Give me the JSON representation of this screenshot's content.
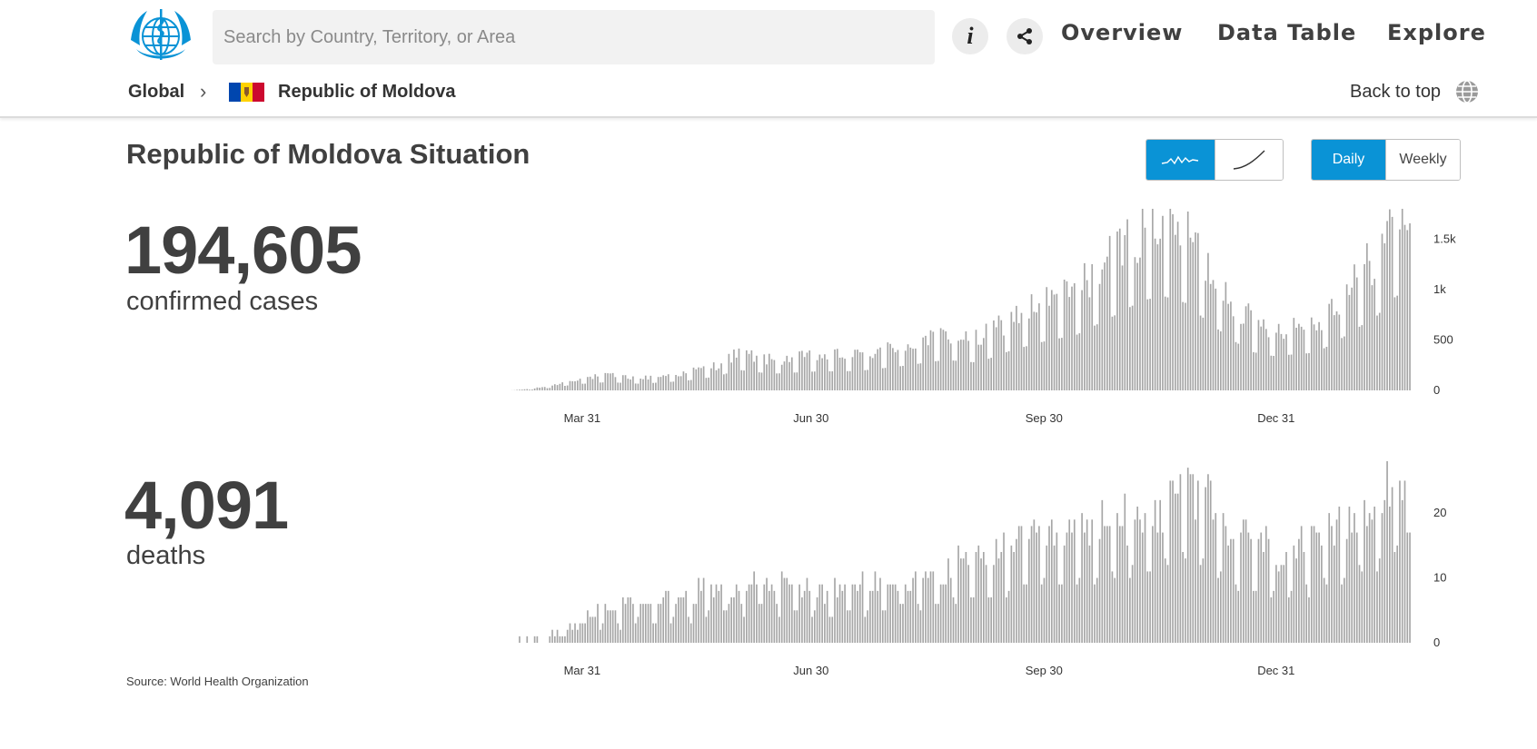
{
  "search": {
    "placeholder": "Search by Country, Territory, or Area"
  },
  "nav": {
    "overview": "Overview",
    "data_table": "Data Table",
    "explore": "Explore"
  },
  "breadcrumb": {
    "global": "Global",
    "country": "Republic of Moldova",
    "back_to_top": "Back to top"
  },
  "flag_colors": [
    "#0046ae",
    "#ffd200",
    "#cc092f"
  ],
  "accent_color": "#0a93d6",
  "icons": {
    "logo": "who-logo-icon",
    "info": "info-icon",
    "share": "share-icon",
    "globe": "globe-icon",
    "chevron": "chevron-right-icon",
    "daily_wave": "bar-trend-icon",
    "cumulative_curve": "cumulative-curve-icon"
  },
  "page_title": "Republic of Moldova Situation",
  "chart_mode": {
    "selected": "daily-new"
  },
  "period_toggle": {
    "daily": "Daily",
    "weekly": "Weekly",
    "selected": "Daily"
  },
  "cases": {
    "value": "194,605",
    "label": "confirmed cases"
  },
  "deaths": {
    "value": "4,091",
    "label": "deaths"
  },
  "source": "Source: World Health Organization",
  "chart_data": [
    {
      "type": "bar",
      "name": "cases",
      "x_start": "2020-03-07",
      "x_end": "2021-02-27",
      "x_ticks": [
        "Mar 31",
        "Jun 30",
        "Sep 30",
        "Dec 31"
      ],
      "y_ticks": [
        "0",
        "500",
        "1k",
        "1.5k"
      ],
      "ylim": [
        0,
        1800
      ],
      "control_points": [
        [
          0,
          0
        ],
        [
          10,
          15
        ],
        [
          20,
          50
        ],
        [
          30,
          110
        ],
        [
          45,
          150
        ],
        [
          60,
          120
        ],
        [
          80,
          170
        ],
        [
          95,
          250
        ],
        [
          105,
          370
        ],
        [
          120,
          300
        ],
        [
          140,
          340
        ],
        [
          160,
          350
        ],
        [
          180,
          440
        ],
        [
          200,
          550
        ],
        [
          215,
          500
        ],
        [
          230,
          720
        ],
        [
          245,
          880
        ],
        [
          260,
          1000
        ],
        [
          270,
          1200
        ],
        [
          280,
          1400
        ],
        [
          290,
          1620
        ],
        [
          300,
          1700
        ],
        [
          310,
          1580
        ],
        [
          320,
          1250
        ],
        [
          330,
          950
        ],
        [
          340,
          700
        ],
        [
          350,
          620
        ],
        [
          360,
          650
        ],
        [
          370,
          680
        ],
        [
          380,
          900
        ],
        [
          390,
          1150
        ],
        [
          398,
          1350
        ],
        [
          405,
          1650
        ],
        [
          410,
          1780
        ],
        [
          413,
          1750
        ]
      ],
      "values": []
    },
    {
      "type": "bar",
      "name": "deaths",
      "x_start": "2020-03-07",
      "x_end": "2021-02-27",
      "x_ticks": [
        "Mar 31",
        "Jun 30",
        "Sep 30",
        "Dec 31"
      ],
      "y_ticks": [
        "0",
        "10",
        "20"
      ],
      "ylim": [
        0,
        28
      ],
      "control_points": [
        [
          0,
          0
        ],
        [
          10,
          0
        ],
        [
          20,
          1
        ],
        [
          30,
          3
        ],
        [
          40,
          5
        ],
        [
          55,
          6
        ],
        [
          70,
          7
        ],
        [
          90,
          8
        ],
        [
          100,
          9
        ],
        [
          110,
          10
        ],
        [
          130,
          9
        ],
        [
          150,
          8
        ],
        [
          170,
          9
        ],
        [
          190,
          10
        ],
        [
          210,
          12
        ],
        [
          230,
          15
        ],
        [
          250,
          16
        ],
        [
          270,
          18
        ],
        [
          290,
          20
        ],
        [
          300,
          21
        ],
        [
          310,
          24
        ],
        [
          320,
          22
        ],
        [
          330,
          17
        ],
        [
          340,
          16
        ],
        [
          350,
          14
        ],
        [
          360,
          14
        ],
        [
          370,
          15
        ],
        [
          380,
          17
        ],
        [
          390,
          21
        ],
        [
          400,
          23
        ],
        [
          406,
          26
        ],
        [
          410,
          24
        ],
        [
          413,
          20
        ]
      ],
      "values": []
    }
  ]
}
